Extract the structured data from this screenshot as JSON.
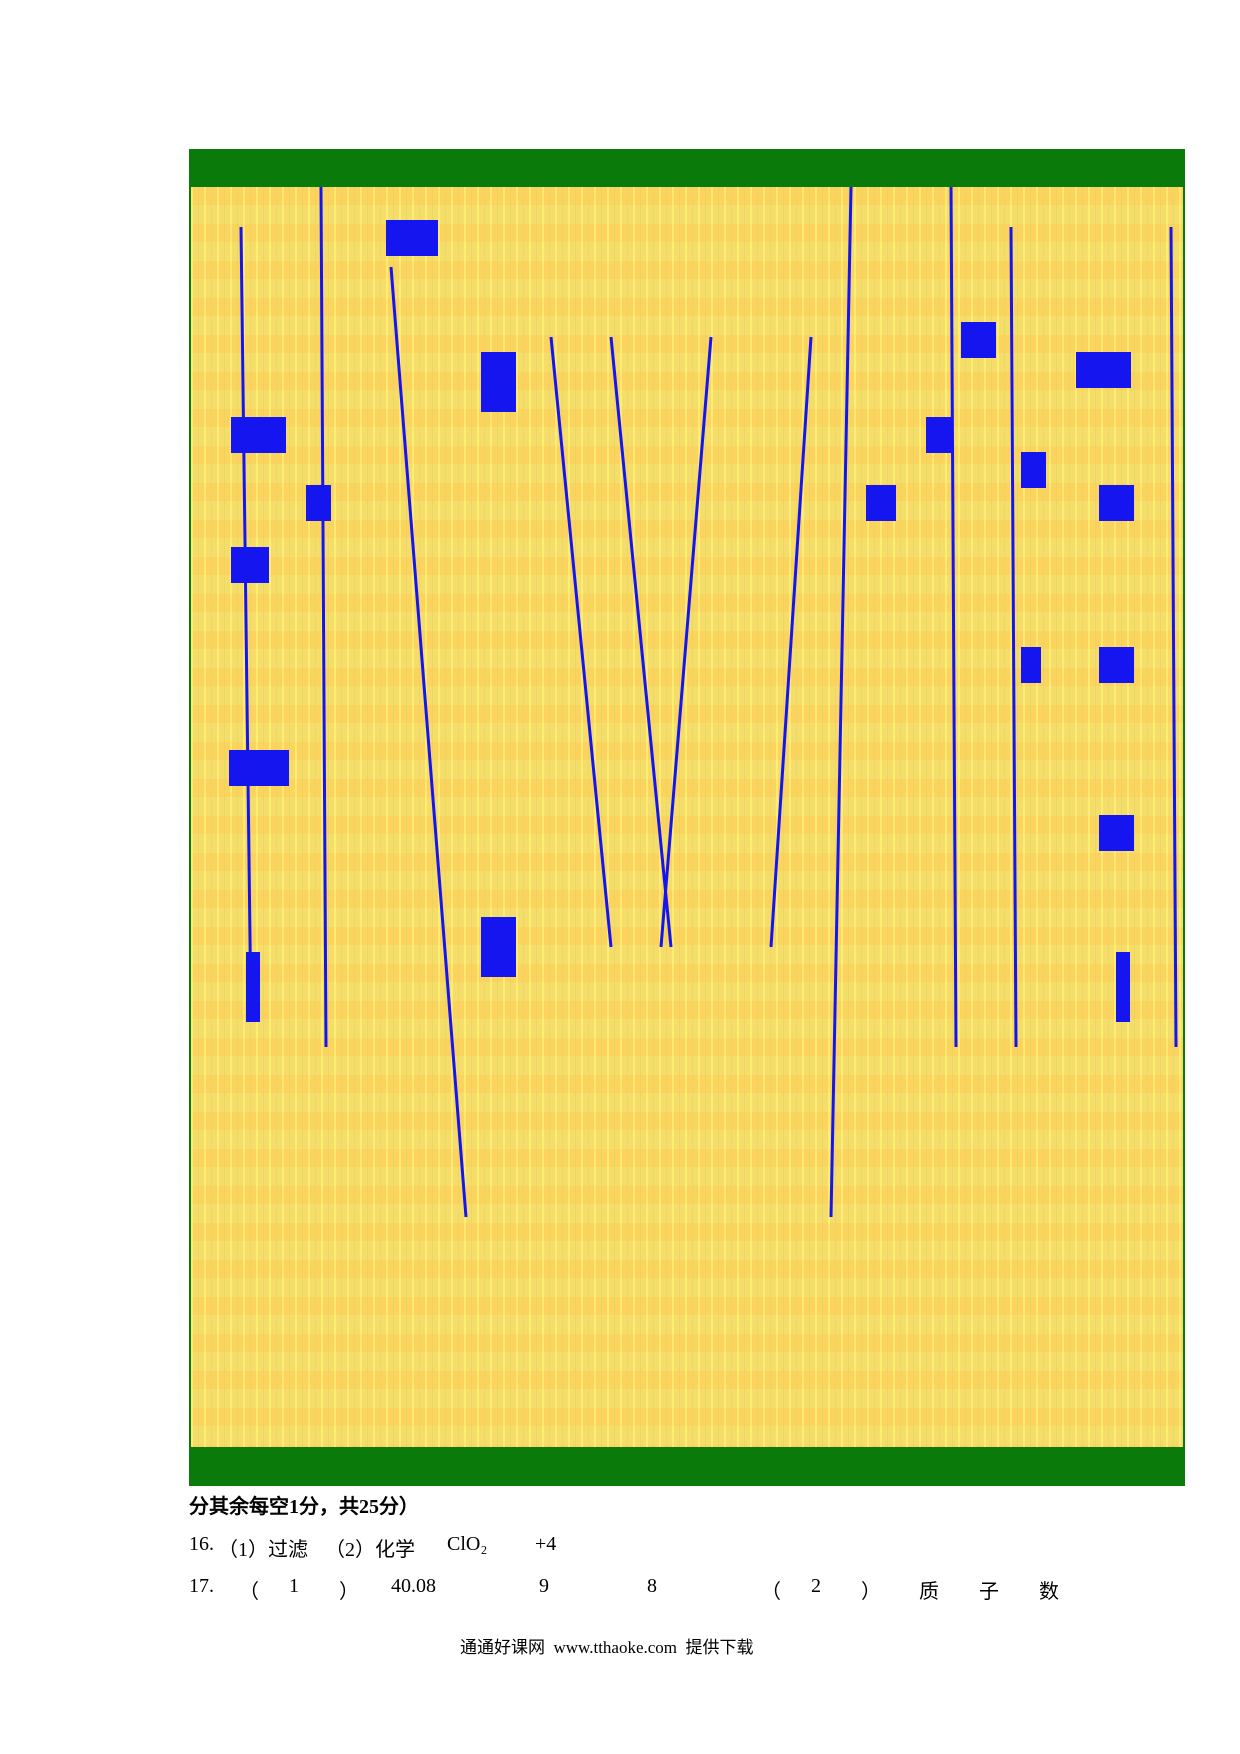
{
  "note": "分其余每空1分，共25分）",
  "q16": {
    "number": "16.",
    "parts": [
      "（1）过滤",
      "（2）化学",
      "ClO₂",
      "+4"
    ]
  },
  "q17": {
    "number": "17.",
    "parts": [
      "（",
      "1",
      "）",
      "40.08",
      "9",
      "8",
      "（",
      "2",
      "）",
      "质",
      "子",
      "数"
    ]
  },
  "footer": "通通好课网  www.tthaoke.com  提供下载"
}
